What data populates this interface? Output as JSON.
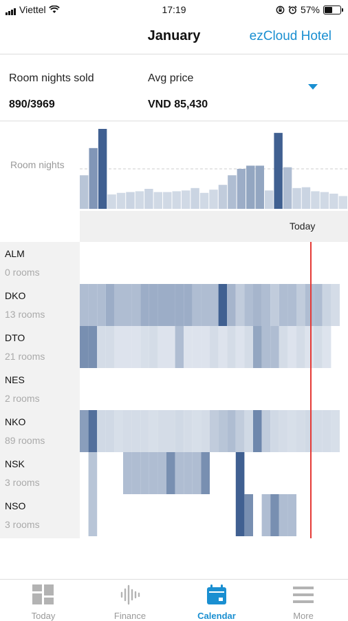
{
  "status_bar": {
    "carrier": "Viettel",
    "time": "17:19",
    "battery": "57%",
    "battery_level": 0.57
  },
  "header": {
    "title": "January",
    "brand": "ezCloud Hotel"
  },
  "summary": {
    "room_nights_label": "Room nights sold",
    "room_nights_value": "890/3969",
    "avg_price_label": "Avg price",
    "avg_price_value": "VND 85,430"
  },
  "colors": {
    "accent": "#1a8fd1",
    "today_line": "#e53935",
    "dark": "#2e5186",
    "mid": "#7f9ab9",
    "light": "#dce3ed"
  },
  "chart_data": {
    "type": "bar",
    "ylabel": "Room nights",
    "today_label": "Today",
    "reference_line": 0.5,
    "values": [
      0.42,
      0.76,
      1.0,
      0.18,
      0.2,
      0.21,
      0.22,
      0.25,
      0.21,
      0.21,
      0.22,
      0.23,
      0.26,
      0.2,
      0.24,
      0.3,
      0.42,
      0.5,
      0.54,
      0.54,
      0.23,
      0.95,
      0.52,
      0.26,
      0.27,
      0.22,
      0.21,
      0.19,
      0.16
    ],
    "intensity": [
      0.25,
      0.55,
      0.9,
      0.12,
      0.12,
      0.15,
      0.12,
      0.15,
      0.12,
      0.12,
      0.12,
      0.12,
      0.15,
      0.12,
      0.12,
      0.2,
      0.3,
      0.4,
      0.45,
      0.45,
      0.15,
      0.9,
      0.3,
      0.15,
      0.15,
      0.12,
      0.12,
      0.12,
      0.1
    ]
  },
  "rooms": [
    {
      "code": "ALM",
      "count": "0 rooms",
      "cells": []
    },
    {
      "code": "DKO",
      "count": "13 rooms",
      "cells": [
        0.3,
        0.3,
        0.3,
        0.4,
        0.3,
        0.3,
        0.3,
        0.4,
        0.4,
        0.4,
        0.4,
        0.4,
        0.4,
        0.3,
        0.3,
        0.3,
        0.9,
        0.35,
        0.2,
        0.3,
        0.35,
        0.3,
        0.2,
        0.3,
        0.3,
        0.2,
        0.3,
        0.3,
        0.15,
        0.1
      ]
    },
    {
      "code": "DTO",
      "count": "21 rooms",
      "cells": [
        0.6,
        0.6,
        0.1,
        0.1,
        0.05,
        0.05,
        0.05,
        0.08,
        0.1,
        0.05,
        0.05,
        0.3,
        0.05,
        0.05,
        0.05,
        0.1,
        0.05,
        0.1,
        0.05,
        0.1,
        0.45,
        0.3,
        0.3,
        0.1,
        0.05,
        0.1,
        0.05,
        0.1,
        0.05,
        0.0
      ]
    },
    {
      "code": "NES",
      "count": "2 rooms",
      "cells": []
    },
    {
      "code": "NKO",
      "count": "89 rooms",
      "cells": [
        0.5,
        0.8,
        0.12,
        0.12,
        0.08,
        0.1,
        0.1,
        0.1,
        0.08,
        0.1,
        0.1,
        0.12,
        0.1,
        0.08,
        0.1,
        0.2,
        0.25,
        0.3,
        0.2,
        0.12,
        0.65,
        0.2,
        0.12,
        0.1,
        0.08,
        0.1,
        0.12,
        0.1,
        0.1,
        0.08
      ]
    },
    {
      "code": "NSK",
      "count": "3 rooms",
      "cells": [
        0,
        0.25,
        0,
        0,
        0,
        0.3,
        0.3,
        0.3,
        0.3,
        0.3,
        0.6,
        0.3,
        0.3,
        0.3,
        0.6,
        0.0,
        0,
        0,
        0.9,
        0,
        0,
        0,
        0,
        0,
        0,
        0,
        0,
        0,
        0,
        0
      ]
    },
    {
      "code": "NSO",
      "count": "3 rooms",
      "cells": [
        0,
        0.25,
        0,
        0,
        0,
        0,
        0,
        0,
        0,
        0,
        0,
        0,
        0,
        0,
        0,
        0,
        0,
        0,
        0.9,
        0.6,
        0,
        0.3,
        0.6,
        0.3,
        0.3,
        0,
        0,
        0,
        0,
        0
      ]
    }
  ],
  "tabs": [
    {
      "label": "Today",
      "icon": "grid-icon"
    },
    {
      "label": "Finance",
      "icon": "waveform-icon"
    },
    {
      "label": "Calendar",
      "icon": "calendar-icon",
      "active": true
    },
    {
      "label": "More",
      "icon": "menu-icon"
    }
  ]
}
